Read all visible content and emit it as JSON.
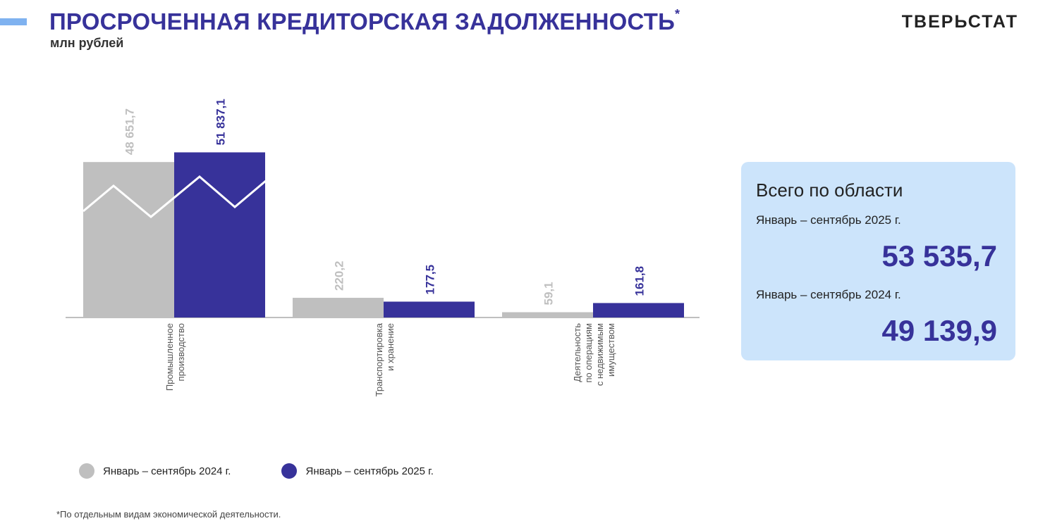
{
  "header": {
    "title": "ПРОСРОЧЕННАЯ КРЕДИТОРСКАЯ ЗАДОЛЖЕННОСТЬ",
    "title_mark": "*",
    "unit": "млн рублей",
    "logo": "ТВЕРЬСТАТ"
  },
  "colors": {
    "series_2024": "#bfbfbf",
    "series_2025": "#37329a",
    "title": "#37329a",
    "card_background": "#cce4fb",
    "accent": "#7fb2f0"
  },
  "chart_data": {
    "type": "bar",
    "title": "ПРОСРОЧЕННАЯ КРЕДИТОРСКАЯ ЗАДОЛЖЕННОСТЬ",
    "ylabel": "млн рублей",
    "categories": [
      [
        "Промышленное",
        "производство"
      ],
      [
        "Транспортировка",
        "и хранение"
      ],
      [
        "Деятельность",
        "по операциям",
        "с недвижимым",
        "имуществом"
      ]
    ],
    "series": [
      {
        "name": "Январь – сентябрь 2024 г.",
        "values": [
          48651.7,
          220.2,
          59.1
        ],
        "labels": [
          "48 651,7",
          "220,2",
          "59,1"
        ],
        "color": "#bfbfbf"
      },
      {
        "name": "Январь – сентябрь 2025 г.",
        "values": [
          51837.1,
          177.5,
          161.8
        ],
        "labels": [
          "51 837,1",
          "177,5",
          "161,8"
        ],
        "color": "#37329a"
      }
    ],
    "axis_break": true,
    "grid": false,
    "legend_position": "bottom"
  },
  "legend": {
    "item_2024": "Январь – сентябрь 2024 г.",
    "item_2025": "Январь – сентябрь 2025 г."
  },
  "total": {
    "title": "Всего по области",
    "period_2025": "Январь – сентябрь 2025 г.",
    "value_2025": "53 535,7",
    "period_2024": "Январь – сентябрь 2024 г.",
    "value_2024": "49 139,9"
  },
  "footnote": "*По отдельным видам экономической деятельности."
}
